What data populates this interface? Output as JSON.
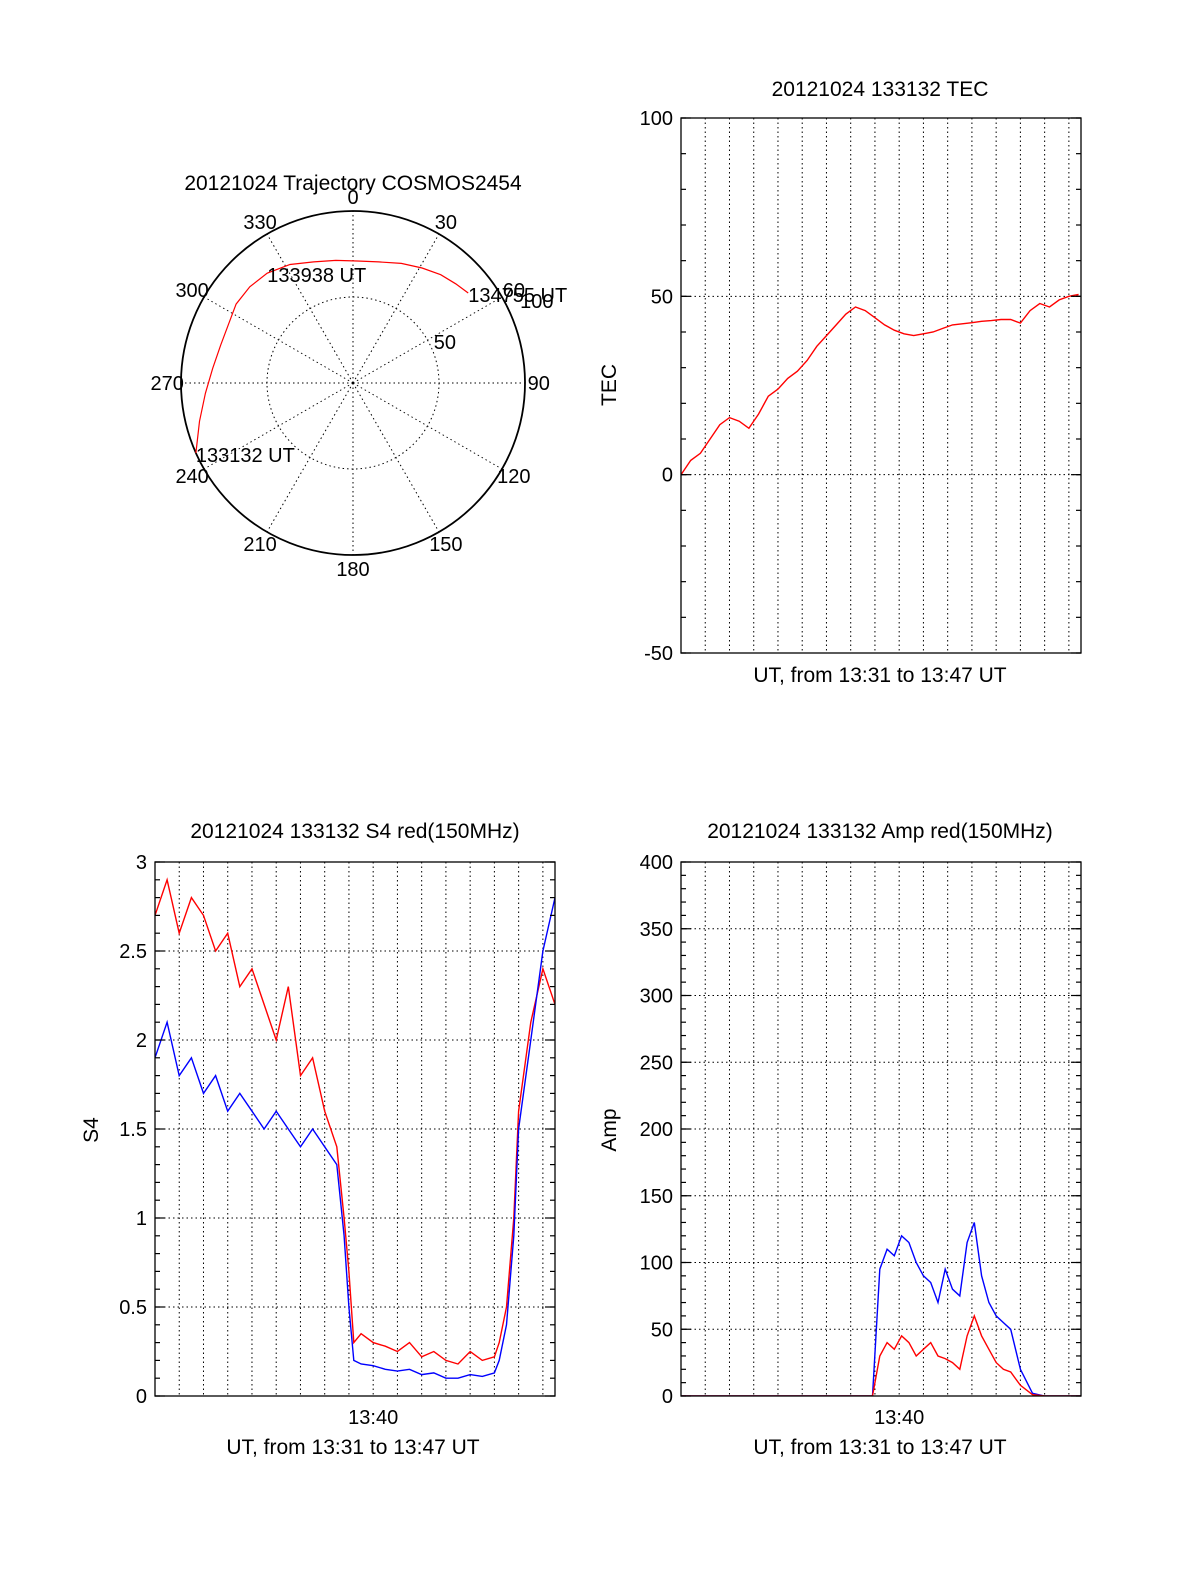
{
  "chart_data": [
    {
      "type": "polar",
      "id": "trajectory",
      "title": "20121024 Trajectory COSMOS2454",
      "azimuth_labels": [
        "0",
        "30",
        "60",
        "90",
        "120",
        "150",
        "180",
        "210",
        "240",
        "270",
        "300",
        "330"
      ],
      "azimuth_values": [
        0,
        30,
        60,
        90,
        120,
        150,
        180,
        210,
        240,
        270,
        300,
        330
      ],
      "radial_rings": [
        50,
        100
      ],
      "radial_labels": [
        "50",
        "100"
      ],
      "outer_radius": 100,
      "series": [
        {
          "name": "trajectory",
          "color": "#ff0000",
          "points": [
            {
              "az": 246,
              "r": 100
            },
            {
              "az": 256,
              "r": 92
            },
            {
              "az": 266,
              "r": 86
            },
            {
              "az": 276,
              "r": 82
            },
            {
              "az": 286,
              "r": 80
            },
            {
              "az": 295,
              "r": 80
            },
            {
              "az": 304,
              "r": 82
            },
            {
              "az": 313,
              "r": 82
            },
            {
              "az": 322,
              "r": 81
            },
            {
              "az": 332,
              "r": 78
            },
            {
              "az": 342,
              "r": 74
            },
            {
              "az": 352,
              "r": 72
            },
            {
              "az": 2,
              "r": 71
            },
            {
              "az": 12,
              "r": 72
            },
            {
              "az": 22,
              "r": 75
            },
            {
              "az": 31,
              "r": 78
            },
            {
              "az": 39,
              "r": 81
            },
            {
              "az": 46,
              "r": 83
            },
            {
              "az": 52,
              "r": 85
            }
          ]
        }
      ],
      "annotations": [
        {
          "text": "133132 UT",
          "az": 246,
          "r": 100
        },
        {
          "text": "133938 UT",
          "az": 322,
          "r": 81
        },
        {
          "text": "134755 UT",
          "az": 52,
          "r": 85
        }
      ]
    },
    {
      "type": "line",
      "id": "tec",
      "title": "20121024 133132 TEC",
      "xlabel": "UT, from 13:31 to 13:47 UT",
      "ylabel": "TEC",
      "xlim": [
        0,
        16.5
      ],
      "ylim": [
        -50,
        100
      ],
      "yticks": [
        -50,
        0,
        50,
        100
      ],
      "ytick_labels": [
        "-50",
        "0",
        "50",
        "100"
      ],
      "xgrid": [
        1,
        2,
        3,
        4,
        5,
        6,
        7,
        8,
        9,
        10,
        11,
        12,
        13,
        14,
        15,
        16
      ],
      "series": [
        {
          "name": "TEC",
          "color": "#ff0000",
          "x": [
            0,
            0.4,
            0.8,
            1.2,
            1.6,
            2.0,
            2.4,
            2.8,
            3.2,
            3.6,
            4.0,
            4.4,
            4.8,
            5.2,
            5.6,
            6.0,
            6.4,
            6.8,
            7.2,
            7.6,
            8.0,
            8.4,
            8.8,
            9.2,
            9.6,
            10.0,
            10.4,
            10.8,
            11.2,
            11.6,
            12.0,
            12.4,
            12.8,
            13.2,
            13.6,
            14.0,
            14.4,
            14.8,
            15.2,
            15.6,
            16.0,
            16.4
          ],
          "y": [
            0,
            4,
            6,
            10,
            14,
            16,
            15,
            13,
            17,
            22,
            24,
            27,
            29,
            32,
            36,
            39,
            42,
            45,
            47,
            46,
            44,
            42,
            40.5,
            39.5,
            39,
            39.5,
            40,
            41,
            42,
            42.3,
            42.6,
            43,
            43.2,
            43.5,
            43.5,
            42.5,
            46,
            48,
            47,
            49,
            50,
            50.5
          ]
        }
      ]
    },
    {
      "type": "line",
      "id": "s4",
      "title": "20121024 133132 S4 red(150MHz)",
      "xlabel": "UT, from 13:31 to 13:47 UT",
      "ylabel": "S4",
      "xlim": [
        0,
        16.5
      ],
      "ylim": [
        0,
        3
      ],
      "yticks": [
        0,
        0.5,
        1,
        1.5,
        2,
        2.5,
        3
      ],
      "ytick_labels": [
        "0",
        "0.5",
        "1",
        "1.5",
        "2",
        "2.5",
        "3"
      ],
      "xtick_values": [
        9
      ],
      "xtick_labels": [
        "13:40"
      ],
      "xgrid": [
        1,
        2,
        3,
        4,
        5,
        6,
        7,
        8,
        9,
        10,
        11,
        12,
        13,
        14,
        15,
        16
      ],
      "series": [
        {
          "name": "red",
          "color": "#ff0000",
          "x": [
            0,
            0.5,
            1,
            1.5,
            2,
            2.5,
            3,
            3.5,
            4,
            4.5,
            5,
            5.5,
            6,
            6.5,
            7,
            7.5,
            7.8,
            8.0,
            8.2,
            8.5,
            9,
            9.5,
            10,
            10.5,
            11,
            11.5,
            12,
            12.5,
            13,
            13.5,
            14,
            14.2,
            14.5,
            14.8,
            15.0,
            15.5,
            16,
            16.5
          ],
          "y": [
            2.7,
            2.9,
            2.6,
            2.8,
            2.7,
            2.5,
            2.6,
            2.3,
            2.4,
            2.2,
            2.0,
            2.3,
            1.8,
            1.9,
            1.6,
            1.4,
            1.0,
            0.7,
            0.3,
            0.35,
            0.3,
            0.28,
            0.25,
            0.3,
            0.22,
            0.25,
            0.2,
            0.18,
            0.25,
            0.2,
            0.22,
            0.3,
            0.5,
            1.0,
            1.6,
            2.1,
            2.4,
            2.2
          ]
        },
        {
          "name": "blue",
          "color": "#0000ff",
          "x": [
            0,
            0.5,
            1,
            1.5,
            2,
            2.5,
            3,
            3.5,
            4,
            4.5,
            5,
            5.5,
            6,
            6.5,
            7,
            7.5,
            7.8,
            8.0,
            8.2,
            8.5,
            9,
            9.5,
            10,
            10.5,
            11,
            11.5,
            12,
            12.5,
            13,
            13.5,
            14,
            14.2,
            14.5,
            14.8,
            15.0,
            15.5,
            16,
            16.5
          ],
          "y": [
            1.9,
            2.1,
            1.8,
            1.9,
            1.7,
            1.8,
            1.6,
            1.7,
            1.6,
            1.5,
            1.6,
            1.5,
            1.4,
            1.5,
            1.4,
            1.3,
            0.9,
            0.5,
            0.2,
            0.18,
            0.17,
            0.15,
            0.14,
            0.15,
            0.12,
            0.13,
            0.1,
            0.1,
            0.12,
            0.11,
            0.13,
            0.2,
            0.4,
            0.9,
            1.5,
            2.0,
            2.5,
            2.8
          ]
        }
      ]
    },
    {
      "type": "line",
      "id": "amp",
      "title": "20121024 133132 Amp red(150MHz)",
      "xlabel": "UT, from 13:31 to 13:47 UT",
      "ylabel": "Amp",
      "xlim": [
        0,
        16.5
      ],
      "ylim": [
        0,
        400
      ],
      "yticks": [
        0,
        50,
        100,
        150,
        200,
        250,
        300,
        350,
        400
      ],
      "ytick_labels": [
        "0",
        "50",
        "100",
        "150",
        "200",
        "250",
        "300",
        "350",
        "400"
      ],
      "xtick_values": [
        9
      ],
      "xtick_labels": [
        "13:40"
      ],
      "xgrid": [
        1,
        2,
        3,
        4,
        5,
        6,
        7,
        8,
        9,
        10,
        11,
        12,
        13,
        14,
        15,
        16
      ],
      "series": [
        {
          "name": "blue",
          "color": "#0000ff",
          "x": [
            0,
            2,
            4,
            6,
            7.9,
            8.2,
            8.5,
            8.8,
            9.1,
            9.4,
            9.7,
            10.0,
            10.3,
            10.6,
            10.9,
            11.2,
            11.5,
            11.8,
            12.1,
            12.4,
            12.7,
            13.0,
            13.3,
            13.6,
            14.0,
            14.5,
            15,
            16.5
          ],
          "y": [
            0,
            0,
            0,
            0,
            0,
            95,
            110,
            105,
            120,
            115,
            100,
            90,
            85,
            70,
            95,
            80,
            75,
            115,
            130,
            90,
            70,
            60,
            55,
            50,
            20,
            2,
            0,
            0
          ]
        },
        {
          "name": "red",
          "color": "#ff0000",
          "x": [
            0,
            2,
            4,
            6,
            7.9,
            8.2,
            8.5,
            8.8,
            9.1,
            9.4,
            9.7,
            10.0,
            10.3,
            10.6,
            10.9,
            11.2,
            11.5,
            11.8,
            12.1,
            12.4,
            12.7,
            13.0,
            13.3,
            13.6,
            14.0,
            14.5,
            15,
            16.5
          ],
          "y": [
            0,
            0,
            0,
            0,
            0,
            30,
            40,
            35,
            45,
            40,
            30,
            35,
            40,
            30,
            28,
            25,
            20,
            45,
            60,
            45,
            35,
            25,
            20,
            18,
            8,
            1,
            0,
            0
          ]
        }
      ]
    }
  ]
}
